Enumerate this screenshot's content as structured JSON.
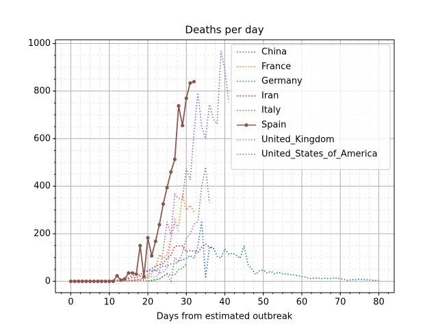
{
  "chart_data": {
    "type": "line",
    "title": "Deaths per day",
    "x_label": "Days from estimated outbreak",
    "x": [
      0,
      1,
      2,
      3,
      4,
      5,
      6,
      7,
      8,
      9,
      10,
      11,
      12,
      13,
      14,
      15,
      16,
      17,
      18,
      19,
      20,
      21,
      22,
      23,
      24,
      25,
      26,
      27,
      28,
      29,
      30,
      31,
      32,
      33,
      34,
      35,
      36,
      37,
      38,
      39,
      40,
      41,
      42,
      43,
      44,
      45,
      46,
      47,
      48,
      49,
      50,
      51,
      52,
      53,
      54,
      55,
      56,
      57,
      58,
      59,
      60,
      61,
      62,
      63,
      64,
      65,
      66,
      67,
      68,
      69,
      70,
      71,
      72,
      73,
      74,
      75,
      76,
      77,
      78,
      79,
      80
    ],
    "xlim": [
      -4,
      84
    ],
    "xticks": [
      0,
      10,
      20,
      30,
      40,
      50,
      60,
      70,
      80
    ],
    "ylim": [
      -48,
      1016
    ],
    "yticks": [
      0,
      200,
      400,
      600,
      800,
      1000
    ],
    "grid": true,
    "minor_grid": true,
    "xminor_step": 2.5,
    "yminor_step": 50,
    "legend": "upper right",
    "series": [
      {
        "name": "China",
        "color": "#1f77b4",
        "linestyle": "dotted",
        "values": [
          0,
          0,
          0,
          0,
          0,
          0,
          0,
          0,
          0,
          0,
          1,
          2,
          5,
          3,
          10,
          17,
          24,
          26,
          26,
          38,
          43,
          46,
          45,
          57,
          64,
          65,
          73,
          73,
          86,
          89,
          97,
          108,
          97,
          146,
          254,
          13,
          143,
          142,
          105,
          98,
          136,
          114,
          118,
          109,
          97,
          150,
          71,
          52,
          29,
          44,
          47,
          35,
          42,
          31,
          38,
          31,
          30,
          28,
          27,
          23,
          20,
          17,
          11,
          13,
          14,
          11,
          13,
          10,
          14,
          13,
          11,
          8,
          3,
          7,
          6,
          9,
          7,
          6,
          5,
          3,
          4
        ]
      },
      {
        "name": "France",
        "color": "#ff7f0e",
        "linestyle": "dotted",
        "values": [
          null,
          null,
          null,
          null,
          null,
          null,
          null,
          null,
          null,
          null,
          0,
          0,
          0,
          1,
          0,
          2,
          3,
          4,
          10,
          12,
          18,
          30,
          60,
          112,
          95,
          112,
          186,
          240,
          231,
          365,
          299,
          319,
          292,
          null,
          null,
          null,
          null,
          null,
          null,
          null,
          null,
          null,
          null,
          null,
          null,
          null,
          null,
          null,
          null,
          null,
          null,
          null,
          null,
          null,
          null,
          null,
          null,
          null,
          null,
          null,
          null,
          null,
          null,
          null,
          null,
          null,
          null,
          null,
          null,
          null,
          null,
          null,
          null,
          null,
          null,
          null,
          null,
          null,
          null,
          null,
          null
        ]
      },
      {
        "name": "Germany",
        "color": "#2ca02c",
        "linestyle": "dotted",
        "values": [
          null,
          null,
          null,
          null,
          null,
          null,
          null,
          null,
          null,
          null,
          null,
          null,
          null,
          null,
          null,
          0,
          0,
          1,
          2,
          4,
          0,
          2,
          5,
          10,
          20,
          33,
          25,
          28,
          49,
          55,
          72,
          null,
          null,
          null,
          null,
          null,
          null,
          null,
          null,
          null,
          null,
          null,
          null,
          null,
          null,
          null,
          null,
          null,
          null,
          null,
          null,
          null,
          null,
          null,
          null,
          null,
          null,
          null,
          null,
          null,
          null,
          null,
          null,
          null,
          null,
          null,
          null,
          null,
          null,
          null,
          null,
          null,
          null,
          null,
          null,
          null,
          null,
          null,
          null,
          null,
          null
        ]
      },
      {
        "name": "Iran",
        "color": "#d62728",
        "linestyle": "dotted",
        "values": [
          null,
          null,
          null,
          null,
          null,
          null,
          null,
          null,
          null,
          2,
          4,
          3,
          5,
          8,
          10,
          11,
          15,
          16,
          21,
          49,
          43,
          54,
          63,
          70,
          75,
          97,
          110,
          147,
          149,
          149,
          123,
          129,
          127,
          122,
          143,
          157,
          144,
          139,
          null,
          null,
          null,
          null,
          null,
          null,
          null,
          null,
          null,
          null,
          null,
          null,
          null,
          null,
          null,
          null,
          null,
          null,
          null,
          null,
          null,
          null,
          null,
          null,
          null,
          null,
          null,
          null,
          null,
          null,
          null,
          null,
          null,
          null,
          null,
          null,
          null,
          null,
          null,
          null,
          null,
          null,
          null
        ]
      },
      {
        "name": "Italy",
        "color": "#9467bd",
        "linestyle": "dotted",
        "values": [
          null,
          null,
          null,
          null,
          null,
          null,
          null,
          null,
          null,
          null,
          null,
          null,
          1,
          2,
          1,
          5,
          4,
          8,
          5,
          18,
          27,
          41,
          49,
          36,
          133,
          250,
          196,
          366,
          349,
          345,
          475,
          427,
          627,
          793,
          651,
          601,
          743,
          683,
          662,
          969,
          889,
          756,
          null,
          null,
          null,
          null,
          null,
          null,
          null,
          null,
          null,
          null,
          null,
          null,
          null,
          null,
          null,
          null,
          null,
          null,
          null,
          null,
          null,
          null,
          null,
          null,
          null,
          null,
          null,
          null,
          null,
          null,
          null,
          null,
          null,
          null,
          null,
          null,
          null,
          null,
          null
        ]
      },
      {
        "name": "Spain",
        "color": "#8c564b",
        "linestyle": "solid",
        "marker": true,
        "values": [
          0,
          0,
          0,
          0,
          0,
          0,
          0,
          0,
          0,
          0,
          0,
          0,
          23,
          5,
          10,
          35,
          35,
          30,
          150,
          20,
          183,
          107,
          168,
          238,
          325,
          394,
          460,
          513,
          738,
          655,
          770,
          834,
          840,
          null,
          null,
          null,
          null,
          null,
          null,
          null,
          null,
          null,
          null,
          null,
          null,
          null,
          null,
          null,
          null,
          null,
          null,
          null,
          null,
          null,
          null,
          null,
          null,
          null,
          null,
          null,
          null,
          null,
          null,
          null,
          null,
          null,
          null,
          null,
          null,
          null,
          null,
          null,
          null,
          null,
          null,
          null,
          null,
          null,
          null,
          null,
          null
        ]
      },
      {
        "name": "United_Kingdom",
        "color": "#e377c2",
        "linestyle": "dotted",
        "values": [
          null,
          null,
          null,
          null,
          null,
          null,
          null,
          null,
          null,
          null,
          null,
          null,
          null,
          null,
          null,
          0,
          1,
          2,
          1,
          10,
          14,
          20,
          16,
          33,
          40,
          56,
          181,
          260,
          209,
          null,
          null,
          null,
          null,
          null,
          null,
          null,
          null,
          null,
          null,
          null,
          null,
          null,
          null,
          null,
          null,
          null,
          null,
          null,
          null,
          null,
          null,
          null,
          null,
          null,
          null,
          null,
          null,
          null,
          null,
          null,
          null,
          null,
          null,
          null,
          null,
          null,
          null,
          null,
          null,
          null,
          null,
          null,
          null,
          null,
          null,
          null,
          null,
          null,
          null,
          null,
          null
        ]
      },
      {
        "name": "United_States_of_America",
        "color": "#7f7f7f",
        "linestyle": "dotted",
        "values": [
          null,
          null,
          null,
          null,
          null,
          null,
          null,
          null,
          null,
          null,
          null,
          null,
          null,
          null,
          null,
          null,
          null,
          null,
          null,
          null,
          1,
          5,
          8,
          10,
          20,
          30,
          0,
          100,
          80,
          120,
          180,
          200,
          240,
          250,
          400,
          480,
          330,
          null,
          null,
          null,
          null,
          null,
          null,
          null,
          null,
          null,
          null,
          null,
          null,
          null,
          null,
          null,
          null,
          null,
          null,
          null,
          null,
          null,
          null,
          null,
          null,
          null,
          null,
          null,
          null,
          null,
          null,
          null,
          null,
          null,
          null,
          null,
          null,
          null,
          null,
          null,
          null,
          null,
          null,
          null,
          null
        ]
      }
    ]
  }
}
